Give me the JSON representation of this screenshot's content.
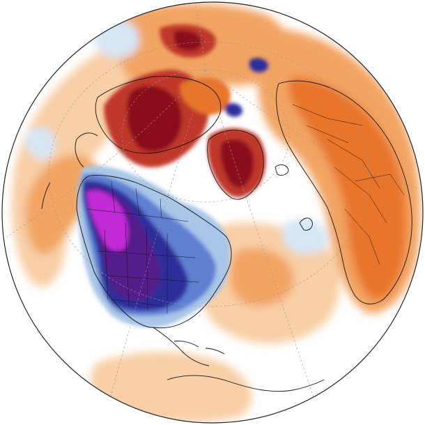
{
  "map": {
    "projection": "orthographic",
    "field": "temperature-anomaly",
    "palette": {
      "extreme_warm": "#8b0a1a",
      "strong_warm": "#c0392b",
      "warm": "#e8742a",
      "mild_warm": "#f2a463",
      "slight_warm": "#f8cfa6",
      "neutral": "#ffffff",
      "slight_cold": "#d6e6f5",
      "mild_cold": "#a9c6e8",
      "cold": "#5f7fd1",
      "strong_cold": "#2f2f9a",
      "very_cold": "#551a8b",
      "extreme_cold": "#c22ad6",
      "coastline": "#111111",
      "graticule": "#9a9a9a",
      "ocean_edge": "#222222"
    }
  }
}
